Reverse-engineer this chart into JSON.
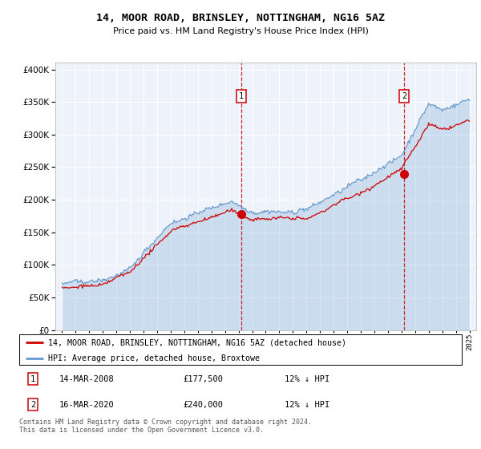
{
  "title": "14, MOOR ROAD, BRINSLEY, NOTTINGHAM, NG16 5AZ",
  "subtitle": "Price paid vs. HM Land Registry's House Price Index (HPI)",
  "legend_line1": "14, MOOR ROAD, BRINSLEY, NOTTINGHAM, NG16 5AZ (detached house)",
  "legend_line2": "HPI: Average price, detached house, Broxtowe",
  "footer": "Contains HM Land Registry data © Crown copyright and database right 2024.\nThis data is licensed under the Open Government Licence v3.0.",
  "purchase1_date": "14-MAR-2008",
  "purchase1_price": 177500,
  "purchase2_date": "16-MAR-2020",
  "purchase2_price": 240000,
  "purchase1_note": "12% ↓ HPI",
  "purchase2_note": "12% ↓ HPI",
  "sale_color": "#cc0000",
  "hpi_color": "#6699cc",
  "hpi_fill_alpha": 0.25,
  "marker1_x": 2008.2,
  "marker2_x": 2020.2,
  "ylim_min": 0,
  "ylim_max": 410000,
  "xlim_min": 1994.5,
  "xlim_max": 2025.5,
  "background_color": "#eef3fb"
}
